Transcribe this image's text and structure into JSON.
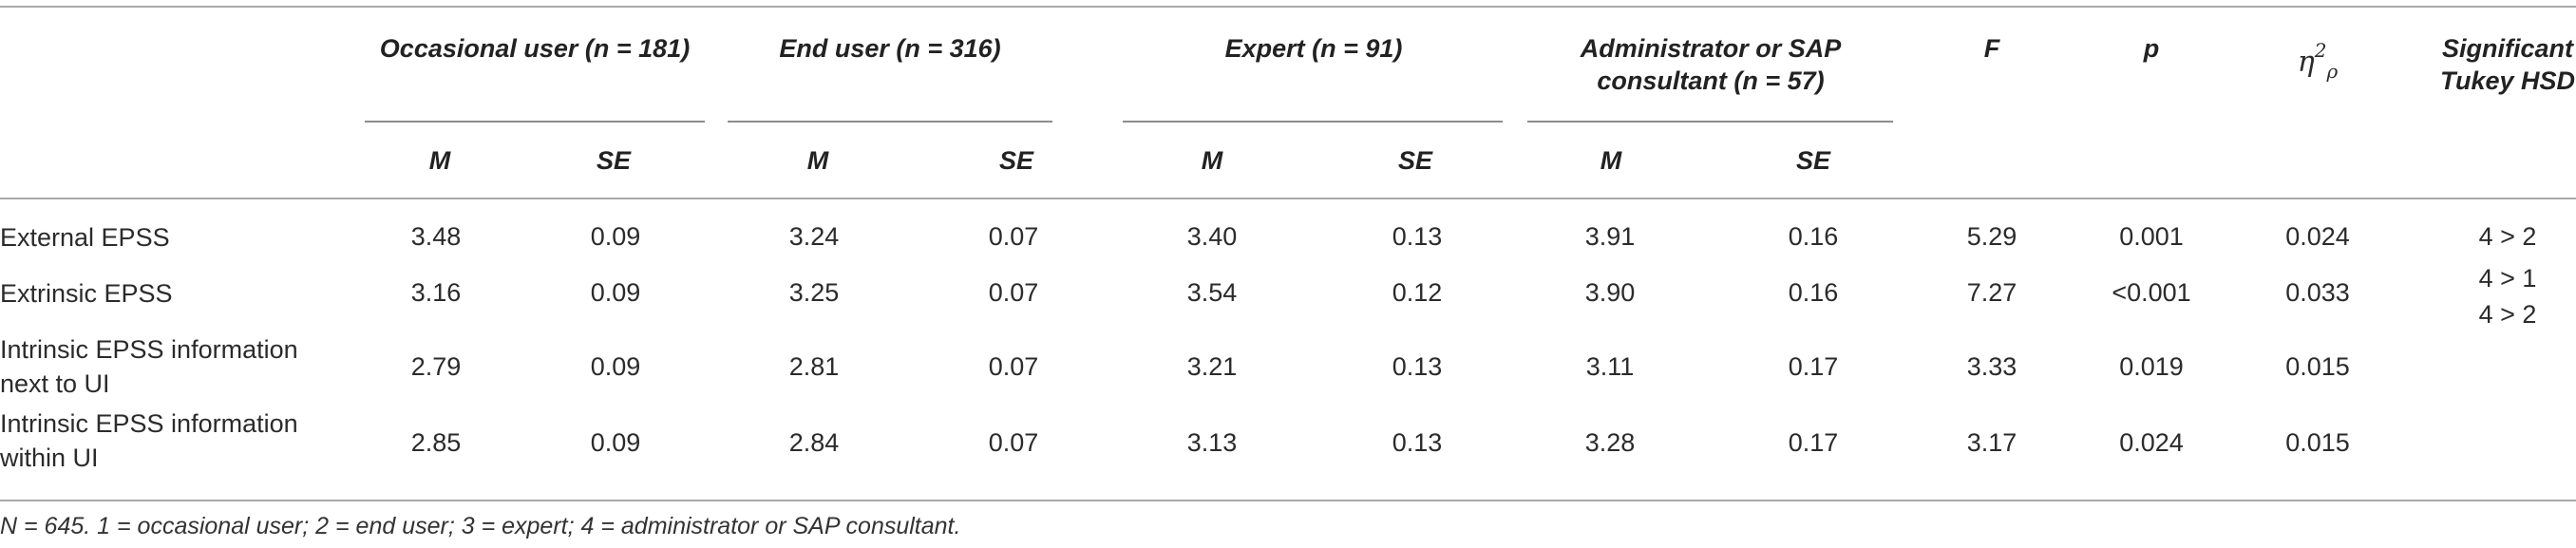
{
  "table": {
    "group_headers": [
      {
        "label": "Occasional user (n = 181)"
      },
      {
        "label": "End user (n = 316)"
      },
      {
        "label": "Expert (n = 91)"
      },
      {
        "label_line1": "Administrator or SAP",
        "label_line2": "consultant (n = 57)"
      }
    ],
    "stat_headers": {
      "f": "F",
      "p": "p",
      "eta_base": "η",
      "eta_sup": "2",
      "eta_sub": "ρ",
      "tukey_line1": "Significant",
      "tukey_line2": "Tukey HSD"
    },
    "sub_headers": [
      "M",
      "SE",
      "M",
      "SE",
      "M",
      "SE",
      "M",
      "SE"
    ],
    "rows": [
      {
        "label_line1": "External EPSS",
        "label_line2": "",
        "values": [
          "3.48",
          "0.09",
          "3.24",
          "0.07",
          "3.40",
          "0.13",
          "3.91",
          "0.16"
        ],
        "f": "5.29",
        "p": "0.001",
        "eta": "0.024",
        "tukey": [
          "4 > 2"
        ]
      },
      {
        "label_line1": "Extrinsic EPSS",
        "label_line2": "",
        "values": [
          "3.16",
          "0.09",
          "3.25",
          "0.07",
          "3.54",
          "0.12",
          "3.90",
          "0.16"
        ],
        "f": "7.27",
        "p": "<0.001",
        "eta": "0.033",
        "tukey": [
          "4 > 1",
          "4 > 2"
        ]
      },
      {
        "label_line1": "Intrinsic EPSS information",
        "label_line2": "next to UI",
        "values": [
          "2.79",
          "0.09",
          "2.81",
          "0.07",
          "3.21",
          "0.13",
          "3.11",
          "0.17"
        ],
        "f": "3.33",
        "p": "0.019",
        "eta": "0.015",
        "tukey": []
      },
      {
        "label_line1": "Intrinsic EPSS information",
        "label_line2": "within UI",
        "values": [
          "2.85",
          "0.09",
          "2.84",
          "0.07",
          "3.13",
          "0.13",
          "3.28",
          "0.17"
        ],
        "f": "3.17",
        "p": "0.024",
        "eta": "0.015",
        "tukey": []
      }
    ],
    "footnote": "N = 645. 1 = occasional user; 2 = end user; 3 = expert; 4 = administrator or SAP consultant."
  }
}
